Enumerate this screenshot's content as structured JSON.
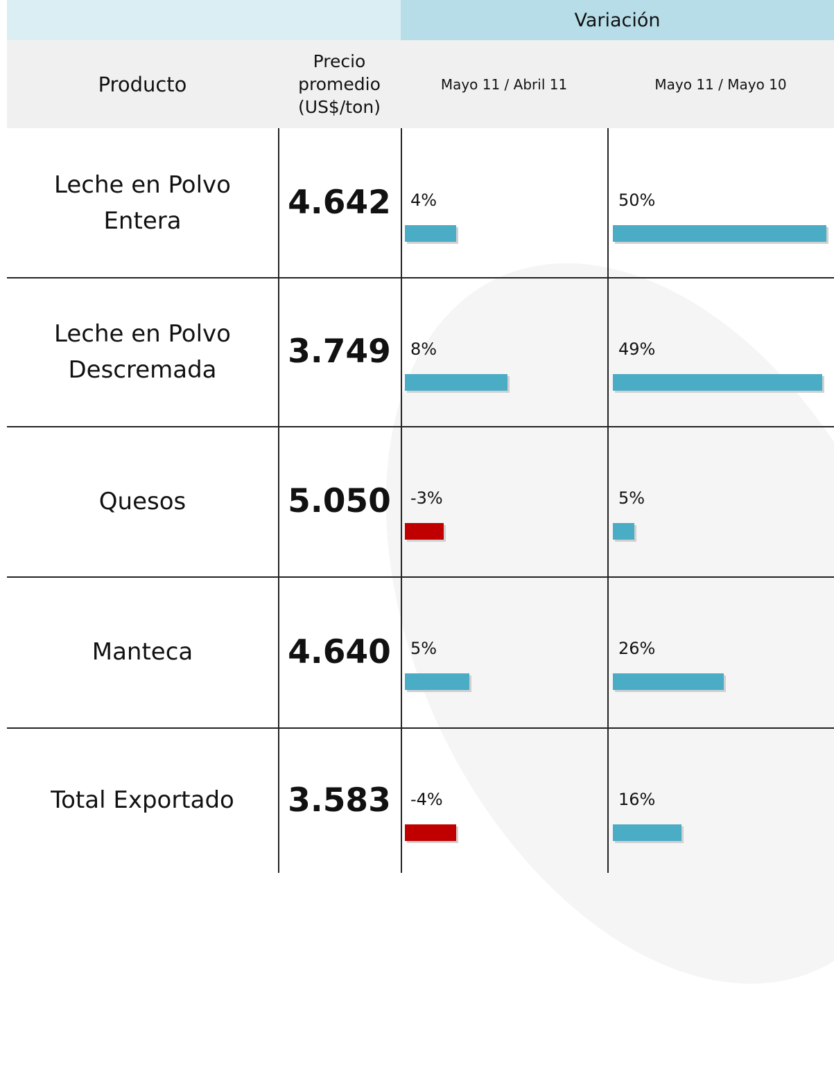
{
  "header": {
    "group": "Variación",
    "columns": [
      "Producto",
      "Precio promedio (US$/ton)",
      "Mayo 11 / Abril 11",
      "Mayo 11 / Mayo 10"
    ]
  },
  "colors": {
    "positive": "#4bacc6",
    "negative": "#c00000"
  },
  "rows": [
    {
      "product": "Leche en Polvo Entera",
      "price": "4.642",
      "variation": [
        4,
        50
      ],
      "variation_labels": [
        "4%",
        "50%"
      ]
    },
    {
      "product": "Leche en Polvo Descremada",
      "price": "3.749",
      "variation": [
        8,
        49
      ],
      "variation_labels": [
        "8%",
        "49%"
      ]
    },
    {
      "product": "Quesos",
      "price": "5.050",
      "variation": [
        -3,
        5
      ],
      "variation_labels": [
        "-3%",
        "5%"
      ]
    },
    {
      "product": "Manteca",
      "price": "4.640",
      "variation": [
        5,
        26
      ],
      "variation_labels": [
        "5%",
        "26%"
      ]
    },
    {
      "product": "Total Exportado",
      "price": "3.583",
      "variation": [
        -4,
        16
      ],
      "variation_labels": [
        "-4%",
        "16%"
      ]
    }
  ]
}
